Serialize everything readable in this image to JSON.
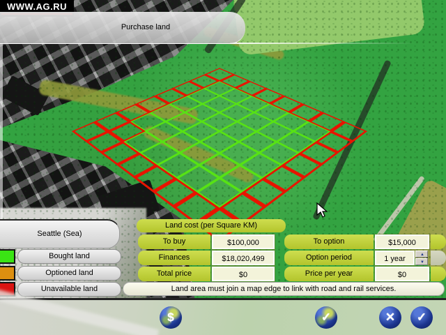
{
  "watermark": {
    "text": "WWW.AG.RU",
    "underline_color": "#b01010"
  },
  "header": {
    "title": "Purchase land"
  },
  "map": {
    "region_label": "Seattle (Sea)",
    "legend": [
      {
        "label": "Bought land",
        "color": "#3ae414"
      },
      {
        "label": "Optioned land",
        "color": "#dc8f10"
      },
      {
        "label": "Unavailable land",
        "color": "#da1411"
      }
    ],
    "grid": {
      "rows": [
        "RRRRRRRR",
        "RGGGGGGR",
        "RGGGGGGR",
        "RGGGGGGR",
        "RGGGGGGR",
        "RGGGGGGR",
        "RRGGGGGR",
        "RRRRRRRR"
      ],
      "red_color": "#e81400",
      "green_color": "#57e214"
    }
  },
  "panel": {
    "header": "Land cost (per Square KM)",
    "rows": [
      {
        "label1": "To buy",
        "value1": "$100,000",
        "label2": "To option",
        "value2": "$15,000"
      },
      {
        "label1": "Finances",
        "value1": "$18,020,499",
        "label2": "Option period",
        "value2": "1 year"
      },
      {
        "label1": "Total price",
        "value1": "$0",
        "label2": "Price per year",
        "value2": "$0"
      }
    ],
    "spinner": {
      "up": "▲",
      "down": "▼"
    },
    "message": "Land area must join a map edge to link with road and rail services."
  },
  "toolbar": {
    "buttons": [
      {
        "name": "finance",
        "glyph": "$"
      },
      {
        "name": "confirm-area",
        "glyph": "✓"
      },
      {
        "name": "cancel",
        "glyph": "✕"
      },
      {
        "name": "accept",
        "glyph": "✓"
      }
    ]
  }
}
